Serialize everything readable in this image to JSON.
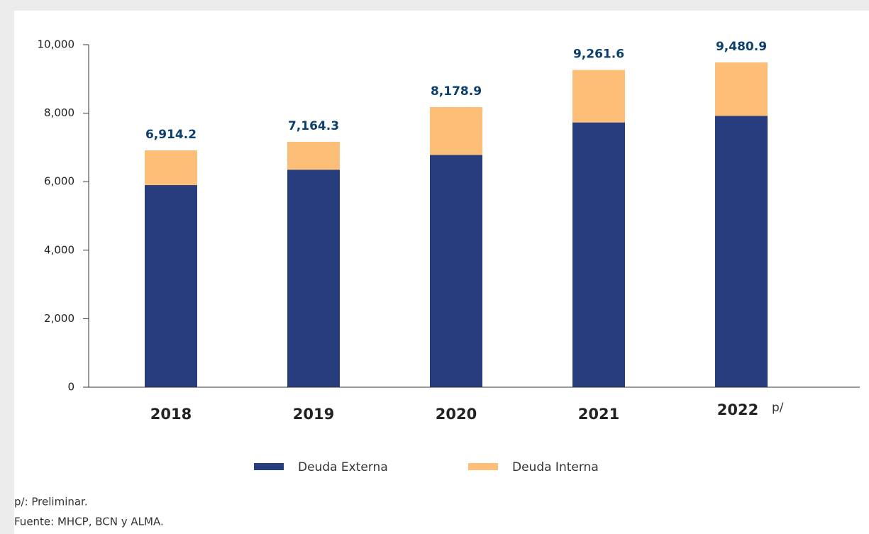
{
  "chart_data": {
    "type": "stacked_bar",
    "categories": [
      "2018",
      "2019",
      "2020",
      "2021",
      "2022"
    ],
    "category_note": "p/",
    "series": [
      {
        "name": "Deuda Externa",
        "color": "#283d7e",
        "values": [
          5900,
          6350,
          6780,
          7730,
          7920
        ]
      },
      {
        "name": "Deuda Interna",
        "color": "#fdbe78",
        "values": [
          1014.2,
          814.3,
          1398.9,
          1531.6,
          1560.9
        ]
      }
    ],
    "totals": [
      6914.2,
      7164.3,
      8178.9,
      9261.6,
      9480.9
    ],
    "totals_labels": [
      "6,914.2",
      "7,164.3",
      "8,178.9",
      "9,261.6",
      "9,480.9"
    ],
    "ylim": [
      0,
      10000
    ],
    "yticks": [
      0,
      {
        "value": 2000,
        "label": "2,000"
      },
      {
        "value": 4000,
        "label": "4,000"
      },
      {
        "value": 6000,
        "label": "6,000"
      },
      {
        "value": 8000,
        "label": "8,000"
      },
      {
        "value": 10000,
        "label": "10,000"
      }
    ],
    "legend": "bottom",
    "notes": [
      "p/: Preliminar.",
      "Fuente: MHCP, BCN y ALMA."
    ]
  }
}
